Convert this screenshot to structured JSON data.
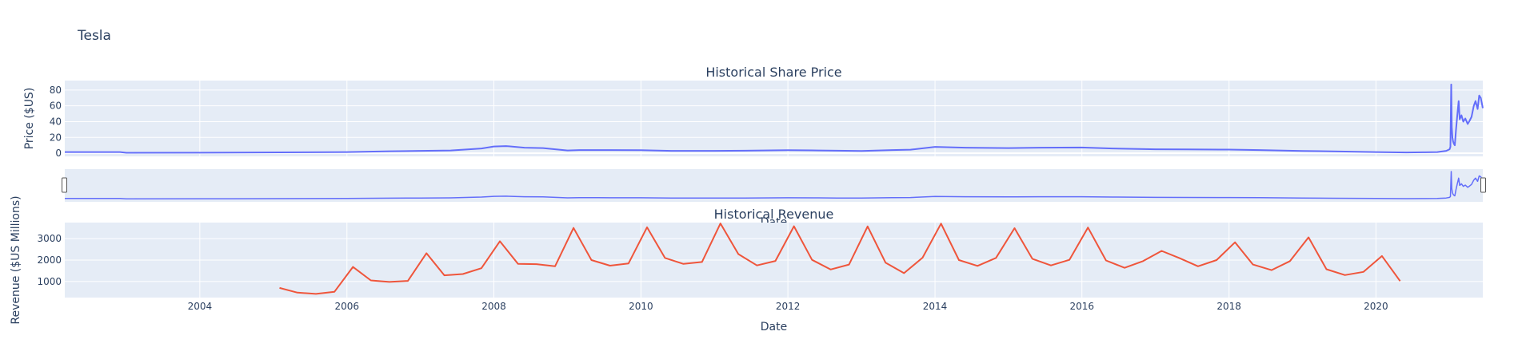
{
  "figure_title": "Tesla",
  "colors": {
    "plot_bg": "#e5ecf6",
    "grid": "#ffffff",
    "text": "#2a3f5f",
    "price_line": "#636efa",
    "revenue_line": "#ef553b",
    "handle": "#aaaaaa"
  },
  "chart_data": [
    {
      "type": "line",
      "title": "Historical Share Price",
      "xlabel": "Date",
      "ylabel": "Price ($US)",
      "xlim": [
        "2002-03-01",
        "2021-06-15"
      ],
      "ylim": [
        -4,
        92
      ],
      "y_ticks": [
        0,
        20,
        40,
        60,
        80
      ],
      "grid": true,
      "range_slider": true,
      "series": [
        {
          "color": "#636efa",
          "x": [
            "2002-03-01",
            "2002-12-01",
            "2003-01-01",
            "2004-06-01",
            "2005-06-01",
            "2006-01-01",
            "2006-08-01",
            "2007-01-01",
            "2007-06-01",
            "2007-09-01",
            "2007-11-01",
            "2008-01-01",
            "2008-03-01",
            "2008-06-01",
            "2008-09-01",
            "2009-01-01",
            "2009-03-01",
            "2009-06-01",
            "2010-01-01",
            "2010-06-01",
            "2011-01-01",
            "2011-06-01",
            "2012-01-01",
            "2012-06-01",
            "2012-09-01",
            "2013-01-01",
            "2013-06-01",
            "2013-09-01",
            "2014-01-01",
            "2014-06-01",
            "2015-01-01",
            "2015-06-01",
            "2016-01-01",
            "2016-06-01",
            "2017-01-01",
            "2017-06-01",
            "2018-01-01",
            "2018-06-01",
            "2019-01-01",
            "2019-06-01",
            "2020-01-01",
            "2020-06-01",
            "2020-09-01",
            "2020-11-01",
            "2020-12-15",
            "2021-01-01",
            "2021-01-05",
            "2021-01-09",
            "2021-01-12",
            "2021-01-15",
            "2021-01-18",
            "2021-01-22",
            "2021-01-27",
            "2021-02-02",
            "2021-02-08",
            "2021-02-15",
            "2021-02-20",
            "2021-03-01",
            "2021-03-10",
            "2021-03-20",
            "2021-04-01",
            "2021-04-10",
            "2021-04-20",
            "2021-05-01",
            "2021-05-10",
            "2021-05-20",
            "2021-05-28",
            "2021-06-05",
            "2021-06-15"
          ],
          "y": [
            1.5,
            1.5,
            0.5,
            0.8,
            1.2,
            1.5,
            2.5,
            3,
            3.5,
            5,
            6,
            8.5,
            9,
            7,
            6.5,
            3.5,
            4,
            4,
            3.8,
            3,
            3,
            3.2,
            3.8,
            3.5,
            3.2,
            2.8,
            4,
            4.5,
            8,
            7,
            6.5,
            7,
            7.2,
            6,
            5,
            4.8,
            4.6,
            4,
            2.8,
            2.4,
            1.5,
            1,
            1.2,
            1.5,
            3,
            5,
            8,
            87,
            33,
            20,
            15,
            12,
            10,
            30,
            47,
            66,
            43,
            48,
            40,
            44,
            37,
            41,
            46,
            60,
            66,
            56,
            73,
            70,
            57
          ]
        }
      ]
    },
    {
      "type": "line",
      "title": "Historical Revenue",
      "xlabel": "Date",
      "ylabel": "Revenue ($US Millions)",
      "xlim": [
        "2002-03-01",
        "2021-06-15"
      ],
      "ylim": [
        250,
        3750
      ],
      "y_ticks": [
        1000,
        2000,
        3000
      ],
      "x_ticks": [
        "2004",
        "2006",
        "2008",
        "2010",
        "2012",
        "2014",
        "2016",
        "2018",
        "2020"
      ],
      "grid": true,
      "series": [
        {
          "color": "#ef553b",
          "x": [
            "2005-01-31",
            "2005-04-30",
            "2005-07-31",
            "2005-10-31",
            "2006-01-31",
            "2006-04-30",
            "2006-07-31",
            "2006-10-31",
            "2007-01-31",
            "2007-04-30",
            "2007-07-31",
            "2007-10-31",
            "2008-01-31",
            "2008-04-30",
            "2008-07-31",
            "2008-10-31",
            "2009-01-31",
            "2009-04-30",
            "2009-07-31",
            "2009-10-31",
            "2010-01-31",
            "2010-04-30",
            "2010-07-31",
            "2010-10-31",
            "2011-01-31",
            "2011-04-30",
            "2011-07-31",
            "2011-10-31",
            "2012-01-31",
            "2012-04-30",
            "2012-07-31",
            "2012-10-31",
            "2013-01-31",
            "2013-04-30",
            "2013-07-31",
            "2013-10-31",
            "2014-01-31",
            "2014-04-30",
            "2014-07-31",
            "2014-10-31",
            "2015-01-31",
            "2015-04-30",
            "2015-07-31",
            "2015-10-31",
            "2016-01-31",
            "2016-04-30",
            "2016-07-31",
            "2016-10-31",
            "2017-01-31",
            "2017-04-30",
            "2017-07-31",
            "2017-10-31",
            "2018-01-31",
            "2018-04-30",
            "2018-07-31",
            "2018-10-31",
            "2019-01-31",
            "2019-04-30",
            "2019-07-31",
            "2019-10-31",
            "2020-01-31",
            "2020-04-30"
          ],
          "y": [
            700,
            480,
            420,
            520,
            1680,
            1050,
            980,
            1030,
            2320,
            1290,
            1350,
            1620,
            2880,
            1820,
            1810,
            1710,
            3500,
            2000,
            1740,
            1840,
            3530,
            2100,
            1820,
            1910,
            3710,
            2280,
            1750,
            1960,
            3580,
            2010,
            1560,
            1790,
            3570,
            1880,
            1390,
            2110,
            3700,
            2000,
            1730,
            2100,
            3490,
            2060,
            1750,
            2010,
            3520,
            1980,
            1640,
            1950,
            2430,
            2090,
            1710,
            2000,
            2830,
            1790,
            1530,
            1950,
            3060,
            1570,
            1300,
            1450,
            2190,
            1020
          ]
        }
      ]
    }
  ]
}
